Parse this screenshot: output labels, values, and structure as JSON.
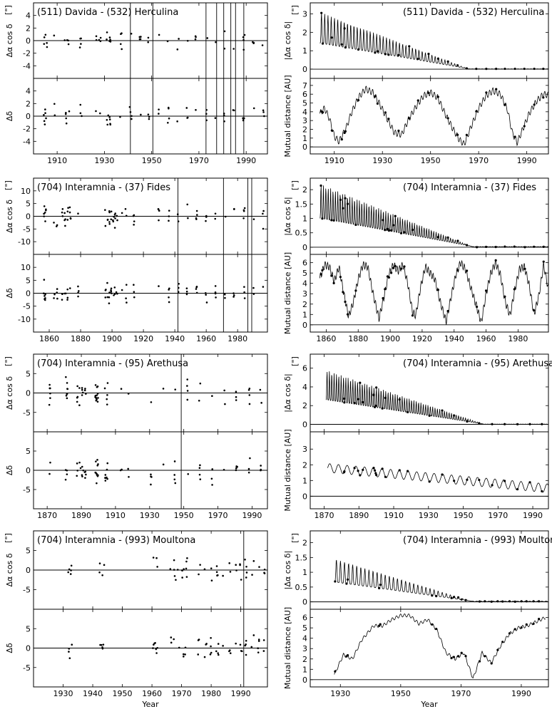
{
  "figure": {
    "xlabel": "Year",
    "unit_label": "[\"]"
  },
  "chart_data": [
    {
      "type": "scatter",
      "title": "(511) Davida - (532) Herculina",
      "xlim": [
        1900,
        1999
      ],
      "xticks": [
        1910,
        1930,
        1950,
        1970,
        1990
      ],
      "event_years": [
        1941,
        1950.5,
        1973,
        1977.5,
        1980.5,
        1983.5,
        1985.5,
        1989
      ],
      "top": {
        "ylabel": "Δα cos δ",
        "ylim": [
          -6,
          6
        ],
        "yticks": [
          -4,
          -2,
          0,
          2,
          4
        ]
      },
      "bottom": {
        "ylabel": "Δδ",
        "ylim": [
          -6,
          6
        ],
        "yticks": [
          -4,
          -2,
          0,
          2,
          4
        ]
      },
      "observation_epochs": [
        [
          1904,
          1906,
          2
        ],
        [
          1908,
          1910,
          1
        ],
        [
          1913,
          1915,
          3
        ],
        [
          1919,
          1921,
          1
        ],
        [
          1926,
          1929,
          2
        ],
        [
          1931,
          1933,
          2
        ],
        [
          1935,
          1999,
          16
        ]
      ],
      "scatter_spread": 0.7
    },
    {
      "type": "line",
      "title": "(511) Davida - (532) Herculina",
      "xlim": [
        1900,
        1999
      ],
      "xticks": [
        1910,
        1930,
        1950,
        1970,
        1990
      ],
      "top": {
        "ylabel": "|Δα cos δ|",
        "ylim": [
          -0.5,
          3.6
        ],
        "yticks": [
          0,
          1,
          2,
          3
        ],
        "decay": {
          "peak_start": 3.1,
          "zero_year": 1966,
          "period": 1.35
        }
      },
      "bottom": {
        "ylabel": "Mutual distance [AU]",
        "ylim": [
          -0.8,
          7.8
        ],
        "yticks": [
          0,
          1,
          2,
          3,
          4,
          5,
          6,
          7
        ],
        "distance": [
          [
            1904,
            3.8
          ],
          [
            1906,
            4.4
          ],
          [
            1908,
            3.2
          ],
          [
            1910,
            1.2
          ],
          [
            1912,
            0.6
          ],
          [
            1915,
            2.2
          ],
          [
            1917,
            3.8
          ],
          [
            1920,
            5.6
          ],
          [
            1923,
            6.6
          ],
          [
            1926,
            6.2
          ],
          [
            1929,
            4.8
          ],
          [
            1932,
            3.2
          ],
          [
            1935,
            1.6
          ],
          [
            1938,
            1.4
          ],
          [
            1941,
            3.2
          ],
          [
            1944,
            4.6
          ],
          [
            1947,
            5.8
          ],
          [
            1950,
            6.2
          ],
          [
            1953,
            5.6
          ],
          [
            1956,
            3.8
          ],
          [
            1959,
            2.2
          ],
          [
            1962,
            0.8
          ],
          [
            1964,
            0.3
          ],
          [
            1967,
            2.4
          ],
          [
            1970,
            4.4
          ],
          [
            1973,
            5.8
          ],
          [
            1976,
            6.4
          ],
          [
            1979,
            6.0
          ],
          [
            1982,
            4.2
          ],
          [
            1984,
            1.6
          ],
          [
            1986,
            0.5
          ],
          [
            1988,
            1.8
          ],
          [
            1991,
            3.8
          ],
          [
            1994,
            5.2
          ],
          [
            1997,
            6.0
          ],
          [
            1999,
            5.9
          ]
        ],
        "wiggle_amp": 0.35,
        "wiggle_period": 1.35
      },
      "observation_epochs": [
        [
          1904,
          1906,
          2
        ],
        [
          1908,
          1910,
          1
        ],
        [
          1913,
          1915,
          3
        ],
        [
          1919,
          1921,
          1
        ],
        [
          1926,
          1929,
          2
        ],
        [
          1931,
          1933,
          2
        ],
        [
          1935,
          1999,
          16
        ]
      ]
    },
    {
      "type": "scatter",
      "title": "(704) Interamnia - (37) Fides",
      "xlim": [
        1850,
        1999
      ],
      "xticks": [
        1860,
        1880,
        1900,
        1920,
        1940,
        1960,
        1980
      ],
      "event_years": [
        1942,
        1971,
        1986.5,
        1989
      ],
      "top": {
        "ylabel": "Δα cos δ",
        "ylim": [
          -15,
          15
        ],
        "yticks": [
          -10,
          -5,
          0,
          5,
          10
        ]
      },
      "bottom": {
        "ylabel": "Δδ",
        "ylim": [
          -15,
          15
        ],
        "yticks": [
          -10,
          -5,
          0,
          5,
          10
        ]
      },
      "observation_epochs": [
        [
          1856,
          1858,
          2
        ],
        [
          1862,
          1866,
          2
        ],
        [
          1868,
          1874,
          4
        ],
        [
          1878,
          1879,
          1
        ],
        [
          1895,
          1904,
          7
        ],
        [
          1906,
          1910,
          2
        ],
        [
          1913,
          1915,
          1
        ],
        [
          1927,
          1999,
          12
        ]
      ],
      "scatter_spread": 2.2
    },
    {
      "type": "line",
      "title": "(704) Interamnia - (37) Fides",
      "xlim": [
        1850,
        1999
      ],
      "xticks": [
        1860,
        1880,
        1900,
        1920,
        1940,
        1960,
        1980
      ],
      "top": {
        "ylabel": "|Δα cos δ|",
        "ylim": [
          -0.25,
          2.4
        ],
        "yticks": [
          0.0,
          0.5,
          1.0,
          1.5,
          2.0
        ],
        "decay": {
          "peak_start": 2.2,
          "zero_year": 1952,
          "period": 1.5
        }
      },
      "bottom": {
        "ylabel": "Mutual distance [AU]",
        "ylim": [
          -0.7,
          6.8
        ],
        "yticks": [
          0,
          1,
          2,
          3,
          4,
          5,
          6
        ],
        "distance": [
          [
            1856,
            4.5
          ],
          [
            1859,
            5.8
          ],
          [
            1862,
            5.6
          ],
          [
            1865,
            4.2
          ],
          [
            1868,
            5.6
          ],
          [
            1871,
            3.0
          ],
          [
            1874,
            0.8
          ],
          [
            1877,
            2.2
          ],
          [
            1880,
            4.4
          ],
          [
            1883,
            5.8
          ],
          [
            1886,
            5.6
          ],
          [
            1889,
            3.2
          ],
          [
            1893,
            0.6
          ],
          [
            1896,
            2.6
          ],
          [
            1899,
            4.8
          ],
          [
            1902,
            5.8
          ],
          [
            1905,
            5.2
          ],
          [
            1908,
            5.8
          ],
          [
            1911,
            4.0
          ],
          [
            1914,
            1.2
          ],
          [
            1916,
            0.9
          ],
          [
            1919,
            3.6
          ],
          [
            1922,
            5.6
          ],
          [
            1925,
            5.0
          ],
          [
            1928,
            4.4
          ],
          [
            1931,
            2.4
          ],
          [
            1935,
            0.3
          ],
          [
            1938,
            2.6
          ],
          [
            1941,
            4.8
          ],
          [
            1944,
            6.0
          ],
          [
            1947,
            5.4
          ],
          [
            1950,
            3.8
          ],
          [
            1954,
            1.8
          ],
          [
            1957,
            0.2
          ],
          [
            1960,
            3.0
          ],
          [
            1963,
            5.0
          ],
          [
            1966,
            6.0
          ],
          [
            1969,
            4.8
          ],
          [
            1972,
            2.2
          ],
          [
            1975,
            0.9
          ],
          [
            1978,
            3.4
          ],
          [
            1981,
            5.4
          ],
          [
            1984,
            5.6
          ],
          [
            1987,
            3.8
          ],
          [
            1990,
            1.0
          ],
          [
            1993,
            2.8
          ],
          [
            1996,
            5.8
          ],
          [
            1999,
            3.4
          ]
        ],
        "wiggle_amp": 0.35,
        "wiggle_period": 1.5
      },
      "observation_epochs": [
        [
          1856,
          1858,
          2
        ],
        [
          1862,
          1866,
          2
        ],
        [
          1868,
          1874,
          4
        ],
        [
          1878,
          1879,
          1
        ],
        [
          1895,
          1904,
          7
        ],
        [
          1906,
          1910,
          2
        ],
        [
          1913,
          1915,
          1
        ],
        [
          1927,
          1999,
          12
        ]
      ]
    },
    {
      "type": "scatter",
      "title": "(704) Interamnia - (95) Arethusa",
      "xlim": [
        1862,
        1999
      ],
      "xticks": [
        1870,
        1890,
        1910,
        1930,
        1950,
        1970,
        1990
      ],
      "event_years": [
        1948.5
      ],
      "top": {
        "ylabel": "Δα cos δ",
        "ylim": [
          -10,
          10
        ],
        "yticks": [
          -5,
          0,
          5
        ]
      },
      "bottom": {
        "ylabel": "Δδ",
        "ylim": [
          -10,
          10
        ],
        "yticks": [
          -5,
          0,
          5
        ]
      },
      "observation_epochs": [
        [
          1871,
          1872,
          2
        ],
        [
          1881,
          1882,
          2
        ],
        [
          1887,
          1893,
          4
        ],
        [
          1898,
          1900,
          5
        ],
        [
          1903,
          1906,
          2
        ],
        [
          1911,
          1920,
          2
        ],
        [
          1927,
          1999,
          10
        ]
      ],
      "scatter_spread": 1.6
    },
    {
      "type": "line",
      "title": "(704) Interamnia - (95) Arethusa",
      "xlim": [
        1862,
        1999
      ],
      "xticks": [
        1870,
        1890,
        1910,
        1930,
        1950,
        1970,
        1990
      ],
      "top": {
        "ylabel": "|Δα cos δ|",
        "ylim": [
          -0.8,
          7.5
        ],
        "yticks": [
          0,
          2,
          4,
          6
        ],
        "decay": {
          "peak_start": 5.8,
          "zero_year": 1962,
          "period": 1.35
        }
      },
      "bottom": {
        "ylabel": "Mutual distance [AU]",
        "ylim": [
          -0.8,
          4.1
        ],
        "yticks": [
          0,
          1,
          2,
          3
        ],
        "distance": [
          [
            1872,
            1.8
          ],
          [
            1999,
            0.5
          ]
        ],
        "wiggle_amp": 0.28,
        "wiggle_period": 5
      },
      "observation_epochs": [
        [
          1871,
          1872,
          2
        ],
        [
          1881,
          1882,
          2
        ],
        [
          1887,
          1893,
          4
        ],
        [
          1898,
          1900,
          5
        ],
        [
          1903,
          1906,
          2
        ],
        [
          1911,
          1920,
          2
        ],
        [
          1927,
          1999,
          10
        ]
      ]
    },
    {
      "type": "scatter",
      "title": "(704) Interamnia - (993) Moultona",
      "xlim": [
        1920,
        1999
      ],
      "xticks": [
        1930,
        1940,
        1950,
        1960,
        1970,
        1980,
        1990
      ],
      "event_years": [
        1991
      ],
      "top": {
        "ylabel": "Δα cos δ",
        "ylim": [
          -10,
          10
        ],
        "yticks": [
          -5,
          0,
          5
        ]
      },
      "bottom": {
        "ylabel": "Δδ",
        "ylim": [
          -10,
          10
        ],
        "yticks": [
          -5,
          0,
          5
        ]
      },
      "observation_epochs": [
        [
          1931.5,
          1932.5,
          2
        ],
        [
          1942.5,
          1943.5,
          2
        ],
        [
          1960,
          1962,
          2
        ],
        [
          1966,
          1972,
          5
        ],
        [
          1975,
          1999,
          12
        ]
      ],
      "scatter_spread": 1.5
    },
    {
      "type": "line",
      "title": "(704) Interamnia - (993) Moultona",
      "xlim": [
        1920,
        1999
      ],
      "xticks": [
        1930,
        1950,
        1970,
        1990
      ],
      "top": {
        "ylabel": "|Δα cos δ|",
        "ylim": [
          -0.25,
          2.4
        ],
        "yticks": [
          0.0,
          0.5,
          1.0,
          1.5,
          2.0
        ],
        "decay": {
          "peak_start": 1.45,
          "zero_year": 1974,
          "period": 1.35
        }
      },
      "bottom": {
        "ylabel": "Mutual distance [AU]",
        "ylim": [
          -0.7,
          6.8
        ],
        "yticks": [
          0,
          1,
          2,
          3,
          4,
          5,
          6
        ],
        "distance": [
          [
            1928,
            0.5
          ],
          [
            1931,
            2.4
          ],
          [
            1934,
            2.0
          ],
          [
            1937,
            3.8
          ],
          [
            1941,
            5.2
          ],
          [
            1944,
            5.2
          ],
          [
            1947,
            5.8
          ],
          [
            1950,
            6.2
          ],
          [
            1953,
            6.2
          ],
          [
            1956,
            5.4
          ],
          [
            1959,
            5.8
          ],
          [
            1962,
            4.8
          ],
          [
            1965,
            2.6
          ],
          [
            1968,
            2.0
          ],
          [
            1971,
            2.6
          ],
          [
            1974,
            0.1
          ],
          [
            1977,
            2.6
          ],
          [
            1980,
            1.6
          ],
          [
            1983,
            3.2
          ],
          [
            1986,
            4.4
          ],
          [
            1989,
            5.0
          ],
          [
            1992,
            5.2
          ],
          [
            1995,
            5.6
          ],
          [
            1998,
            6.0
          ]
        ],
        "wiggle_amp": 0.15,
        "wiggle_period": 1.35
      },
      "observation_epochs": [
        [
          1928,
          1928.5,
          1
        ],
        [
          1931.5,
          1932.5,
          2
        ],
        [
          1942.5,
          1943.5,
          2
        ],
        [
          1960,
          1962,
          2
        ],
        [
          1966,
          1972,
          5
        ],
        [
          1975,
          1999,
          12
        ]
      ]
    }
  ]
}
